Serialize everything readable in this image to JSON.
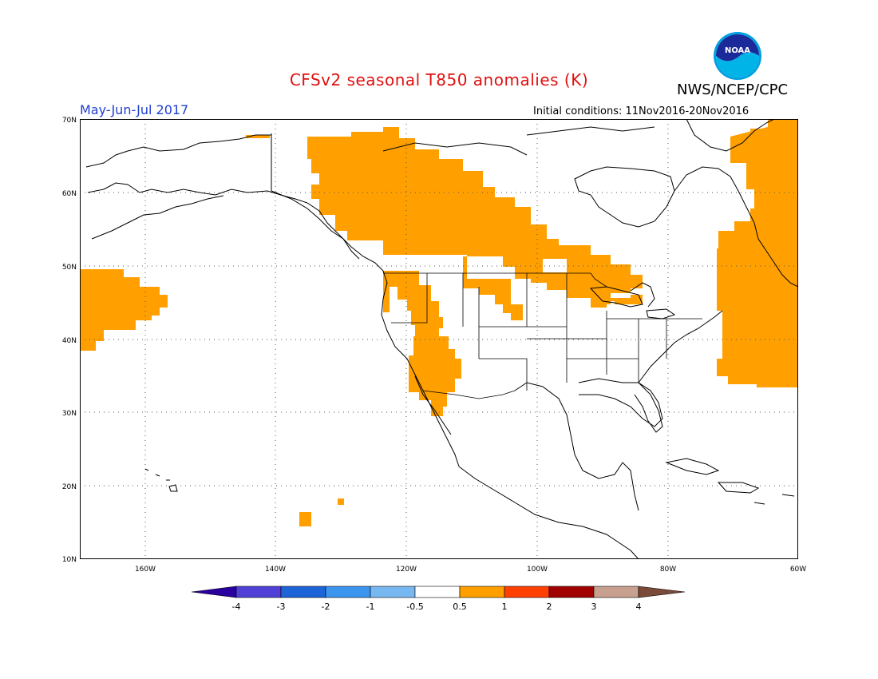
{
  "header": {
    "title": "CFSv2 seasonal T850 anomalies (K)",
    "agency": "NWS/NCEP/CPC",
    "logo_text": "NOAA",
    "period": "May-Jun-Jul 2017",
    "initial_conditions": "Initial conditions: 11Nov2016-20Nov2016"
  },
  "map": {
    "lat_labels": [
      "70N",
      "60N",
      "50N",
      "40N",
      "30N",
      "20N",
      "10N"
    ],
    "lon_labels": [
      "160W",
      "140W",
      "120W",
      "100W",
      "80W",
      "60W"
    ],
    "anomaly_fill_color": "#ffa000",
    "coastline_color": "#000000",
    "grid_style": "dotted"
  },
  "colorbar": {
    "labels": [
      "-4",
      "-3",
      "-2",
      "-1",
      "-0.5",
      "0.5",
      "1",
      "2",
      "3",
      "4"
    ],
    "colors": [
      "#2a00a0",
      "#5040d8",
      "#1c64d8",
      "#3c96f0",
      "#78b8f0",
      "#ffffff",
      "#ffa000",
      "#ff4000",
      "#a00000",
      "#c8a090",
      "#7a4a3a"
    ]
  }
}
